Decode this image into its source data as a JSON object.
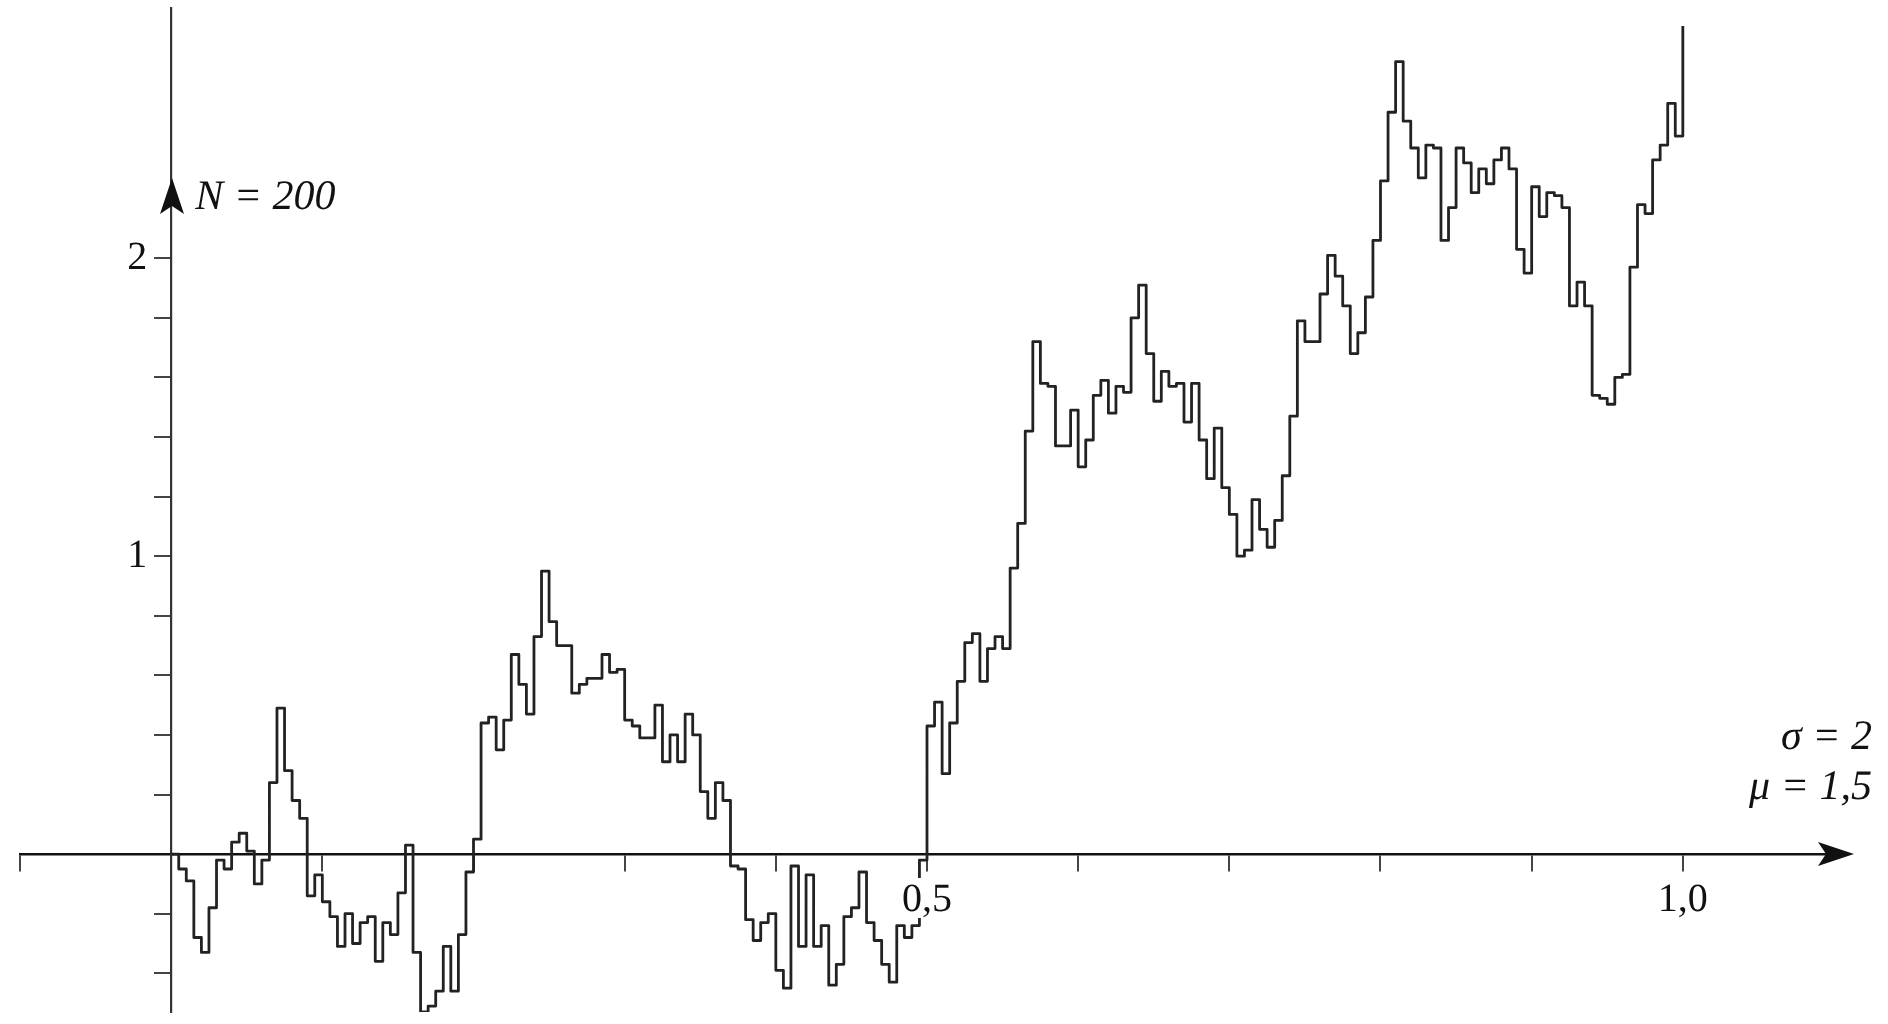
{
  "chart_data": {
    "type": "step",
    "ylabel": "N = 200",
    "annotations": [
      "σ = 2",
      "μ = 1,5"
    ],
    "xlim": [
      -0.1,
      1.1
    ],
    "ylim": [
      -0.53,
      2.84
    ],
    "xticks": [
      {
        "value": -0.1,
        "label": null
      },
      {
        "value": 0.1,
        "label": null
      },
      {
        "value": 0.2,
        "label": null
      },
      {
        "value": 0.3,
        "label": null
      },
      {
        "value": 0.4,
        "label": null
      },
      {
        "value": 0.5,
        "label": "0,5"
      },
      {
        "value": 0.6,
        "label": null
      },
      {
        "value": 0.7,
        "label": null
      },
      {
        "value": 0.8,
        "label": null
      },
      {
        "value": 0.9,
        "label": null
      },
      {
        "value": 1.0,
        "label": "1,0"
      }
    ],
    "yticks": [
      {
        "value": -0.4,
        "label": null
      },
      {
        "value": -0.2,
        "label": null
      },
      {
        "value": 0.2,
        "label": null
      },
      {
        "value": 0.4,
        "label": null
      },
      {
        "value": 0.6,
        "label": null
      },
      {
        "value": 0.8,
        "label": null
      },
      1,
      {
        "value": 1.2,
        "label": null
      },
      {
        "value": 1.4,
        "label": null
      },
      {
        "value": 1.6,
        "label": null
      },
      {
        "value": 1.8,
        "label": null
      },
      2
    ],
    "grid": false,
    "legend": false,
    "marker": "none",
    "line_style": "solid",
    "x": [
      0,
      0.005,
      0.01,
      0.015,
      0.02,
      0.025,
      0.03,
      0.035,
      0.04,
      0.045,
      0.05,
      0.055,
      0.06,
      0.065,
      0.07,
      0.075,
      0.08,
      0.085,
      0.09,
      0.095,
      0.1,
      0.105,
      0.11,
      0.115,
      0.12,
      0.125,
      0.13,
      0.135,
      0.14,
      0.145,
      0.15,
      0.155,
      0.16,
      0.165,
      0.17,
      0.175,
      0.18,
      0.185,
      0.19,
      0.195,
      0.2,
      0.205,
      0.21,
      0.215,
      0.22,
      0.225,
      0.23,
      0.235,
      0.24,
      0.245,
      0.25,
      0.255,
      0.26,
      0.265,
      0.27,
      0.275,
      0.28,
      0.285,
      0.29,
      0.295,
      0.3,
      0.305,
      0.31,
      0.315,
      0.32,
      0.325,
      0.33,
      0.335,
      0.34,
      0.345,
      0.35,
      0.355,
      0.36,
      0.365,
      0.37,
      0.375,
      0.38,
      0.385,
      0.39,
      0.395,
      0.4,
      0.405,
      0.41,
      0.415,
      0.42,
      0.425,
      0.43,
      0.435,
      0.44,
      0.445,
      0.45,
      0.455,
      0.46,
      0.465,
      0.47,
      0.475,
      0.48,
      0.485,
      0.49,
      0.495,
      0.5,
      0.505,
      0.51,
      0.515,
      0.52,
      0.525,
      0.53,
      0.535,
      0.54,
      0.545,
      0.55,
      0.555,
      0.56,
      0.565,
      0.57,
      0.575,
      0.58,
      0.585,
      0.59,
      0.595,
      0.6,
      0.605,
      0.61,
      0.615,
      0.62,
      0.625,
      0.63,
      0.635,
      0.64,
      0.645,
      0.65,
      0.655,
      0.66,
      0.665,
      0.67,
      0.675,
      0.68,
      0.685,
      0.69,
      0.695,
      0.7,
      0.705,
      0.71,
      0.715,
      0.72,
      0.725,
      0.73,
      0.735,
      0.74,
      0.745,
      0.75,
      0.755,
      0.76,
      0.765,
      0.77,
      0.775,
      0.78,
      0.785,
      0.79,
      0.795,
      0.8,
      0.805,
      0.81,
      0.815,
      0.82,
      0.825,
      0.83,
      0.835,
      0.84,
      0.845,
      0.85,
      0.855,
      0.86,
      0.865,
      0.87,
      0.875,
      0.88,
      0.885,
      0.89,
      0.895,
      0.9,
      0.905,
      0.91,
      0.915,
      0.92,
      0.925,
      0.93,
      0.935,
      0.94,
      0.945,
      0.95,
      0.955,
      0.96,
      0.965,
      0.97,
      0.975,
      0.98,
      0.985,
      0.99,
      0.995,
      1.0
    ],
    "series": [
      {
        "color": "#222222",
        "values": [
          0,
          -0.05,
          -0.09,
          -0.28,
          -0.33,
          -0.18,
          -0.02,
          -0.05,
          0.04,
          0.07,
          0.01,
          -0.1,
          -0.02,
          0.24,
          0.49,
          0.28,
          0.18,
          0.12,
          -0.14,
          -0.07,
          -0.16,
          -0.21,
          -0.31,
          -0.2,
          -0.3,
          -0.23,
          -0.21,
          -0.36,
          -0.23,
          -0.27,
          -0.13,
          0.03,
          -0.33,
          -0.53,
          -0.51,
          -0.46,
          -0.31,
          -0.46,
          -0.27,
          -0.06,
          0.05,
          0.44,
          0.46,
          0.35,
          0.45,
          0.67,
          0.57,
          0.47,
          0.73,
          0.95,
          0.78,
          0.7,
          0.7,
          0.54,
          0.57,
          0.59,
          0.59,
          0.67,
          0.61,
          0.62,
          0.45,
          0.43,
          0.39,
          0.39,
          0.5,
          0.31,
          0.4,
          0.31,
          0.47,
          0.4,
          0.21,
          0.12,
          0.24,
          0.18,
          -0.04,
          -0.05,
          -0.22,
          -0.29,
          -0.23,
          -0.2,
          -0.39,
          -0.45,
          -0.04,
          -0.31,
          -0.07,
          -0.31,
          -0.24,
          -0.44,
          -0.37,
          -0.21,
          -0.18,
          -0.06,
          -0.23,
          -0.29,
          -0.37,
          -0.43,
          -0.24,
          -0.28,
          -0.24,
          -0.02,
          0.43,
          0.51,
          0.27,
          0.44,
          0.58,
          0.71,
          0.74,
          0.58,
          0.69,
          0.73,
          0.69,
          0.96,
          1.11,
          1.42,
          1.72,
          1.58,
          1.57,
          1.37,
          1.37,
          1.49,
          1.3,
          1.39,
          1.54,
          1.59,
          1.48,
          1.57,
          1.55,
          1.8,
          1.91,
          1.68,
          1.52,
          1.62,
          1.57,
          1.58,
          1.45,
          1.58,
          1.39,
          1.26,
          1.43,
          1.23,
          1.14,
          1.0,
          1.02,
          1.19,
          1.09,
          1.03,
          1.12,
          1.27,
          1.47,
          1.79,
          1.72,
          1.72,
          1.88,
          2.01,
          1.94,
          1.84,
          1.68,
          1.75,
          1.87,
          2.06,
          2.26,
          2.49,
          2.66,
          2.46,
          2.37,
          2.27,
          2.38,
          2.37,
          2.06,
          2.17,
          2.37,
          2.32,
          2.22,
          2.3,
          2.25,
          2.33,
          2.37,
          2.3,
          2.03,
          1.95,
          2.24,
          2.14,
          2.22,
          2.21,
          2.17,
          1.84,
          1.92,
          1.84,
          1.54,
          1.53,
          1.51,
          1.6,
          1.61,
          1.97,
          2.18,
          2.15,
          2.33,
          2.38,
          2.52,
          2.41,
          2.78
        ]
      }
    ]
  }
}
